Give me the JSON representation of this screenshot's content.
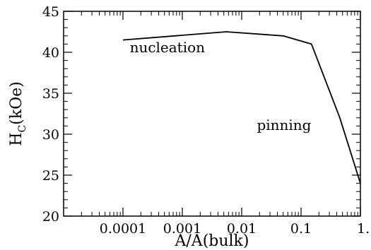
{
  "chart_data": {
    "type": "line",
    "title": "",
    "xlabel": "A/A(bulk)",
    "ylabel_main": "H",
    "ylabel_sub": "C",
    "ylabel_rest": "(kOe)",
    "xscale": "log",
    "xlim": [
      1e-05,
      1
    ],
    "ylim": [
      20,
      45
    ],
    "grid": false,
    "x_ticks": [
      {
        "value": 0.0001,
        "label": "0.0001"
      },
      {
        "value": 0.001,
        "label": "0.001"
      },
      {
        "value": 0.01,
        "label": "0.01"
      },
      {
        "value": 0.1,
        "label": "0.1"
      },
      {
        "value": 1,
        "label": "1."
      }
    ],
    "y_ticks": [
      {
        "value": 20,
        "label": "20"
      },
      {
        "value": 25,
        "label": "25"
      },
      {
        "value": 30,
        "label": "30"
      },
      {
        "value": 35,
        "label": "35"
      },
      {
        "value": 40,
        "label": "40"
      },
      {
        "value": 45,
        "label": "45"
      }
    ],
    "series": [
      {
        "x": [
          0.0001,
          0.0055,
          0.05,
          0.15,
          0.45,
          1.0
        ],
        "y": [
          41.5,
          42.5,
          42.0,
          41.0,
          32.0,
          24.0
        ]
      }
    ],
    "annotations": [
      {
        "text": "nucleation",
        "x": 0.00013,
        "y": 40.0
      },
      {
        "text": "pinning",
        "x": 0.018,
        "y": 30.5
      }
    ]
  }
}
